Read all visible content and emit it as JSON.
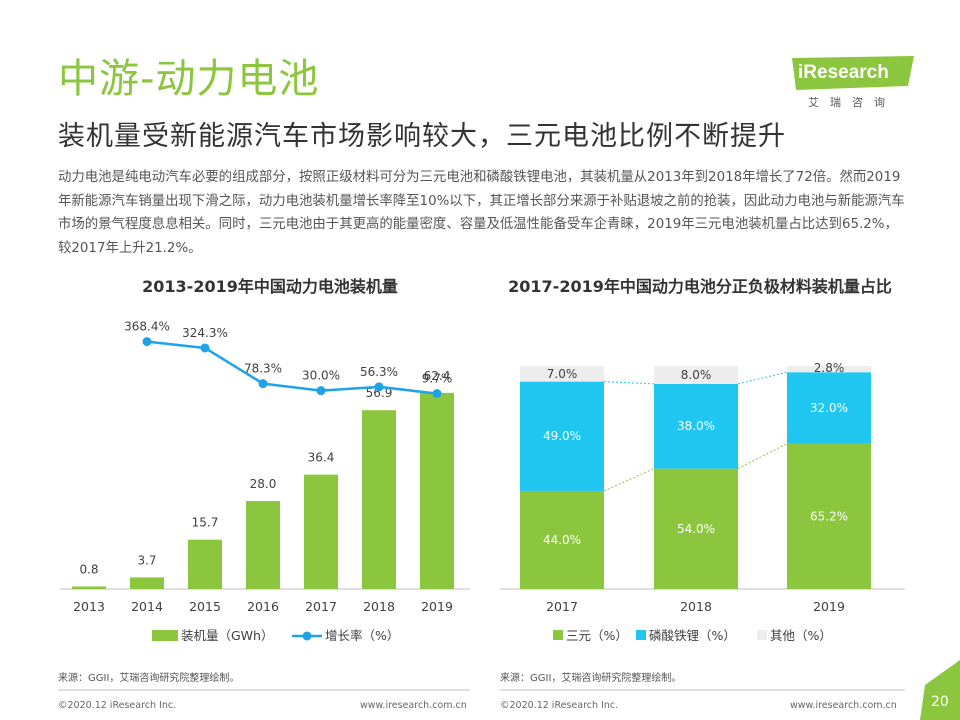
{
  "header": {
    "title": "中游-动力电池",
    "subtitle": "装机量受新能源汽车市场影响较大，三元电池比例不断提升",
    "description": "动力电池是纯电动汽车必要的组成部分，按照正级材料可分为三元电池和磷酸铁锂电池，其装机量从2013年到2018年增长了72倍。然而2019年新能源汽车销量出现下滑之际，动力电池装机量增长率降至10%以下，其正增长部分来源于补贴退坡之前的抢装，因此动力电池与新能源汽车市场的景气程度息息相关。同时，三元电池由于其更高的能量密度、容量及低温性能备受车企青睐，2019年三元电池装机量占比达到65.2%，较2017年上升21.2%。"
  },
  "logo": {
    "name": "iResearch",
    "sub": "艾瑞咨询"
  },
  "colors": {
    "green": "#8cc63f",
    "blue": "#1fc6ef",
    "gray": "#ededed",
    "line": "#1fa2e8"
  },
  "chart_data": [
    {
      "type": "bar",
      "title": "2013-2019年中国动力电池装机量",
      "categories": [
        "2013",
        "2014",
        "2015",
        "2016",
        "2017",
        "2018",
        "2019"
      ],
      "series": [
        {
          "name": "装机量（GWh）",
          "type": "bar",
          "values": [
            0.8,
            3.7,
            15.7,
            28.0,
            36.4,
            56.9,
            62.4
          ],
          "labels": [
            "0.8",
            "3.7",
            "15.7",
            "28.0",
            "36.4",
            "56.9",
            "62.4"
          ]
        },
        {
          "name": "增长率（%）",
          "type": "line",
          "values": [
            368.4,
            324.3,
            78.3,
            30.0,
            56.3,
            9.7
          ],
          "x": [
            "2014",
            "2015",
            "2016",
            "2017",
            "2018",
            "2019"
          ],
          "labels": [
            "368.4%",
            "324.3%",
            "78.3%",
            "30.0%",
            "56.3%",
            "9.7%"
          ]
        }
      ],
      "legend": "bottom"
    },
    {
      "type": "bar",
      "stacked": true,
      "title": "2017-2019年中国动力电池分正负极材料装机量占比",
      "categories": [
        "2017",
        "2018",
        "2019"
      ],
      "series": [
        {
          "name": "三元（%）",
          "values": [
            44.0,
            54.0,
            65.2
          ],
          "labels": [
            "44.0%",
            "54.0%",
            "65.2%"
          ]
        },
        {
          "name": "磷酸铁锂（%）",
          "values": [
            49.0,
            38.0,
            32.0
          ],
          "labels": [
            "49.0%",
            "38.0%",
            "32.0%"
          ]
        },
        {
          "name": "其他（%）",
          "values": [
            7.0,
            8.0,
            2.8
          ],
          "labels": [
            "7.0%",
            "8.0%",
            "2.8%"
          ]
        }
      ],
      "ylim": [
        0,
        100
      ],
      "legend": "bottom"
    }
  ],
  "sources": {
    "left": "来源：GGII，艾瑞咨询研究院整理绘制。",
    "right": "来源：GGII，艾瑞咨询研究院整理绘制。"
  },
  "footer": {
    "copyright_left": "©2020.12 iResearch Inc.",
    "website_left": "www.iresearch.com.cn",
    "copyright_right": "©2020.12 iResearch Inc.",
    "website_right": "www.iresearch.com.cn",
    "page": "20"
  }
}
